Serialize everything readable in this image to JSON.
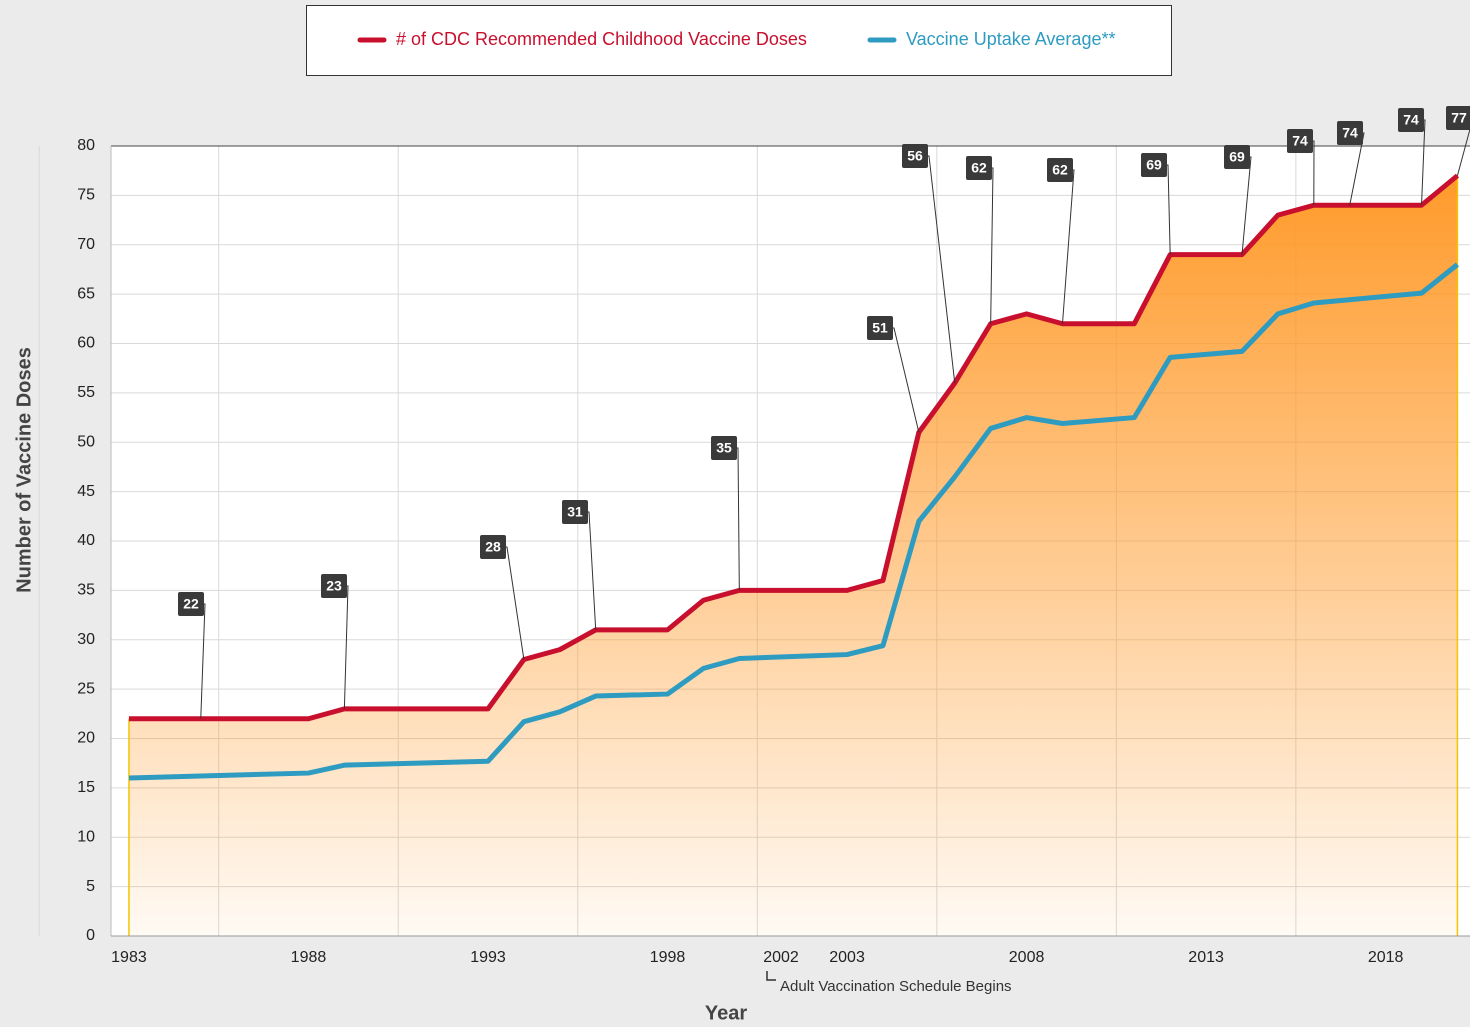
{
  "chart_data": {
    "type": "line",
    "xlabel": "Year",
    "ylabel": "Number of Vaccine Doses",
    "x": [
      1983,
      1988,
      1989,
      1993,
      1994,
      1995,
      1996,
      1998,
      1999,
      2000,
      2003,
      2004,
      2005,
      2006,
      2007,
      2008,
      2009,
      2011,
      2012,
      2014,
      2015,
      2016,
      2019,
      2020
    ],
    "series": [
      {
        "name": "# of CDC Recommended Childhood Vaccine Doses",
        "color": "#c8102e",
        "values": [
          22,
          22,
          23,
          23,
          28,
          29,
          31,
          31,
          34,
          35,
          35,
          36,
          51,
          56,
          62,
          63,
          62,
          62,
          69,
          69,
          73,
          74,
          74,
          77
        ]
      },
      {
        "name": "Vaccine Uptake Average**",
        "color": "#2e9bc1",
        "values": [
          16,
          16.5,
          17.3,
          17.7,
          21.7,
          22.7,
          24.3,
          24.5,
          27.1,
          28.1,
          28.5,
          29.4,
          42,
          46.5,
          51.4,
          52.5,
          51.9,
          52.5,
          58.6,
          59.2,
          63,
          64.1,
          65.1,
          68
        ]
      }
    ],
    "area_fill": "#ff9a2a",
    "xlim": [
      1982.5,
      2020.35
    ],
    "xticks": [
      1983,
      1988,
      1993,
      1998,
      2003,
      2008,
      2013,
      2018
    ],
    "ylim": [
      0,
      80
    ],
    "yticks": [
      0,
      5,
      10,
      15,
      20,
      25,
      30,
      35,
      40,
      45,
      50,
      55,
      60,
      65,
      70,
      75,
      80
    ],
    "grid": true,
    "legend": "top",
    "annotation": {
      "label": "2002",
      "text": "Adult Vaccination Schedule Begins"
    },
    "callouts": [
      {
        "x": 1985,
        "value": 22
      },
      {
        "x": 1989,
        "value": 23
      },
      {
        "x": 1994,
        "value": 28
      },
      {
        "x": 1996,
        "value": 31
      },
      {
        "x": 2000,
        "value": 35
      },
      {
        "x": 2005,
        "value": 51
      },
      {
        "x": 2006,
        "value": 56
      },
      {
        "x": 2007,
        "value": 62
      },
      {
        "x": 2009,
        "value": 62
      },
      {
        "x": 2012,
        "value": 69
      },
      {
        "x": 2014,
        "value": 69
      },
      {
        "x": 2016,
        "value": 74
      },
      {
        "x": 2017,
        "value": 74
      },
      {
        "x": 2019,
        "value": 74
      },
      {
        "x": 2020,
        "value": 77
      }
    ]
  }
}
